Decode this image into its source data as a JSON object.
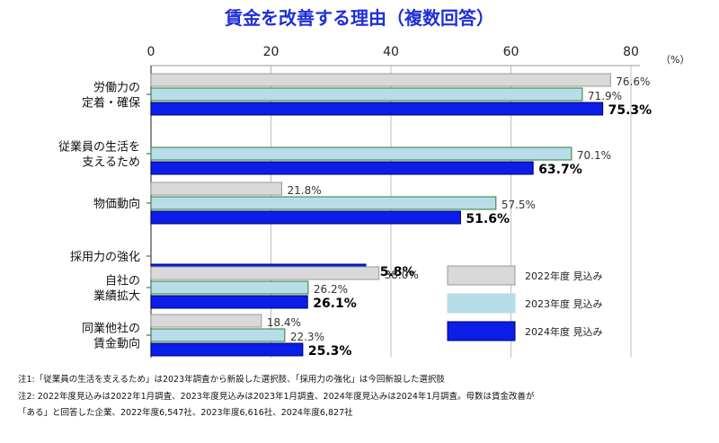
{
  "chart_data": {
    "type": "bar",
    "orientation": "horizontal",
    "title": "賃金を改善する理由（複数回答）",
    "unit_label": "（%）",
    "xlim": [
      0,
      80
    ],
    "ticks": [
      "0",
      "20",
      "40",
      "60",
      "80"
    ],
    "grid": true,
    "legend_position": "bottom-right",
    "categories": [
      [
        "労働力の",
        "定着・確保"
      ],
      [
        "従業員の生活を",
        "支えるため"
      ],
      [
        "物価動向"
      ],
      [
        "採用力の強化"
      ],
      [
        "自社の",
        "業績拡大"
      ],
      [
        "同業他社の",
        "賃金動向"
      ]
    ],
    "series": [
      {
        "name": "2022年度 見込み",
        "color": "#d9d9d9",
        "stroke": "#999999",
        "values": [
          76.6,
          null,
          21.8,
          null,
          38.0,
          18.4
        ],
        "labels": [
          "76.6%",
          "",
          "21.8%",
          "",
          "38.0%",
          "18.4%"
        ]
      },
      {
        "name": "2023年度 見込み",
        "color": "#b7dde8",
        "stroke": "#2e7d32",
        "values": [
          71.9,
          70.1,
          57.5,
          null,
          26.2,
          22.3
        ],
        "labels": [
          "71.9%",
          "70.1%",
          "57.5%",
          "",
          "26.2%",
          "22.3%"
        ]
      },
      {
        "name": "2024年度 見込み",
        "color": "#0a1ee8",
        "stroke": "#000066",
        "values": [
          75.3,
          63.7,
          51.6,
          35.8,
          26.1,
          25.3
        ],
        "labels": [
          "75.3%",
          "63.7%",
          "51.6%",
          "35.8%",
          "26.1%",
          "25.3%"
        ]
      }
    ],
    "notes": [
      "注1:「従業員の生活を支えるため」は2023年調査から新設した選択肢、「採用力の強化」は今回新設した選択肢",
      "注2: 2022年度見込みは2022年1月調査、2023年度見込みは2023年1月調査、2024年度見込みは2024年1月調査。母数は賃金改善が",
      "「ある」と回答した企業、2022年度6,547社、2023年度6,616社、2024年度6,827社"
    ]
  }
}
